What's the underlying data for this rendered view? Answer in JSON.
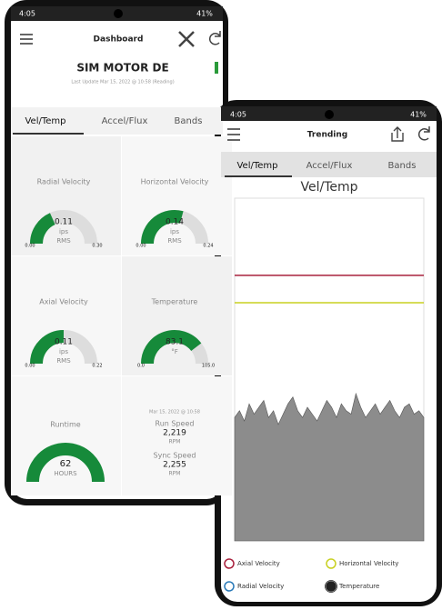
{
  "dashboard": {
    "status": {
      "time": "4:05",
      "battery": "41%"
    },
    "header": {
      "title": "Dashboard"
    },
    "asset": {
      "name": "SIM MOTOR DE",
      "updated": "Last Update Mar 15, 2022 @ 10:58 (Reading)"
    },
    "tabs": [
      "Vel/Temp",
      "Accel/Flux",
      "Bands"
    ],
    "gauges": [
      {
        "label": "Radial Velocity",
        "value": "0.11",
        "unit": "ips",
        "stat": "RMS",
        "min": "0.00",
        "max": "0.30"
      },
      {
        "label": "Horizontal Velocity",
        "value": "0.14",
        "unit": "ips",
        "stat": "RMS",
        "min": "0.00",
        "max": "0.24"
      },
      {
        "label": "Axial Velocity",
        "value": "0.11",
        "unit": "ips",
        "stat": "RMS",
        "min": "0.00",
        "max": "0.22"
      },
      {
        "label": "Temperature",
        "value": "83.1",
        "unit": "°F",
        "stat": "",
        "min": "0.0",
        "max": "105.0"
      }
    ],
    "runtime": {
      "label": "Runtime",
      "value": "62",
      "unit": "HOURS"
    },
    "speeds": {
      "timestamp": "Mar 15, 2022 @ 10:58",
      "run_label": "Run Speed",
      "run_value": "2,219",
      "run_unit": "RPM",
      "sync_label": "Sync Speed",
      "sync_value": "2,255",
      "sync_unit": "RPM"
    }
  },
  "trending": {
    "status": {
      "time": "4:05",
      "battery": "41%"
    },
    "header": {
      "title": "Trending"
    },
    "tabs": [
      "Vel/Temp",
      "Accel/Flux",
      "Bands"
    ]
  },
  "chart_data": {
    "type": "area",
    "title": "Vel/Temp",
    "ylim": [
      0,
      100
    ],
    "series": [
      {
        "name": "Axial Velocity",
        "color": "#a8203c",
        "values": [
          77.5,
          77.5,
          77.5,
          77.5,
          77.5,
          77.5,
          77.5,
          77.5,
          77.5,
          77.5,
          77.5,
          77.5,
          77.5,
          77.5,
          77.5,
          77.5,
          77.5,
          77.5,
          77.5,
          77.5,
          77.5,
          77.5,
          77.5,
          77.5,
          77.5,
          77.5,
          77.5,
          77.5,
          77.5,
          77.5,
          77.5,
          77.5,
          77.5,
          77.5,
          77.5,
          77.5,
          77.5,
          77.5,
          77.5,
          77.5
        ]
      },
      {
        "name": "Horizontal Velocity",
        "color": "#c8d020",
        "values": [
          69.5,
          69.5,
          69.5,
          69.5,
          69.5,
          69.5,
          69.5,
          69.5,
          69.5,
          69.5,
          69.5,
          69.5,
          69.5,
          69.5,
          69.5,
          69.5,
          69.5,
          69.5,
          69.5,
          69.5,
          69.5,
          69.5,
          69.5,
          69.5,
          69.5,
          69.5,
          69.5,
          69.5,
          69.5,
          69.5,
          69.5,
          69.5,
          69.5,
          69.5,
          69.5,
          69.5,
          69.5,
          69.5,
          69.5,
          69.5
        ]
      },
      {
        "name": "Radial Velocity",
        "color": "#2a7ab8",
        "values": [
          null,
          null,
          null,
          null,
          null,
          null,
          null,
          null,
          null,
          null,
          null,
          null,
          null,
          null,
          null,
          null,
          null,
          null,
          null,
          null,
          null,
          null,
          null,
          null,
          null,
          null,
          null,
          null,
          null,
          null,
          null,
          null,
          null,
          null,
          null,
          null,
          null,
          null,
          null,
          null
        ]
      },
      {
        "name": "Temperature",
        "color": "#222222",
        "fill": "#8c8c8c",
        "values": [
          36,
          38,
          35,
          40,
          37,
          39,
          41,
          36,
          38,
          34,
          37,
          40,
          42,
          38,
          36,
          39,
          37,
          35,
          38,
          41,
          39,
          36,
          40,
          38,
          37,
          43,
          39,
          36,
          38,
          40,
          37,
          39,
          41,
          38,
          36,
          39,
          40,
          37,
          38,
          36
        ]
      }
    ]
  }
}
